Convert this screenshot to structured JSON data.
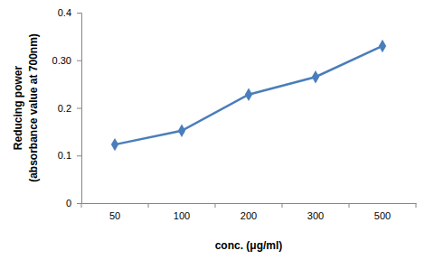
{
  "chart_data": {
    "type": "line",
    "categories": [
      "50",
      "100",
      "200",
      "300",
      "500"
    ],
    "values": [
      0.123,
      0.152,
      0.228,
      0.265,
      0.33
    ],
    "color": "#4a7ebb",
    "marker": "diamond",
    "xlabel": "conc. (μg/ml)",
    "ylabel": [
      "Reducing power",
      "(absorbance value at 700nm)"
    ],
    "ylim": [
      0,
      0.4
    ],
    "yticks": [
      0,
      0.1,
      0.2,
      {
        "value": 0.3,
        "label": "0.30"
      },
      0.4
    ],
    "grid": false
  }
}
